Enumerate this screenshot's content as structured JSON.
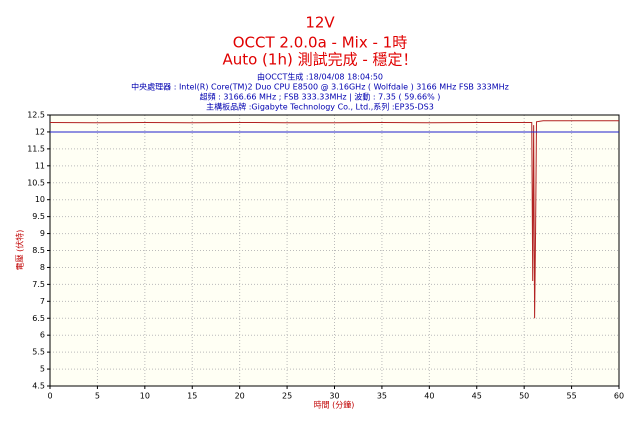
{
  "chart_data": {
    "type": "line",
    "title": "12V",
    "subtitle": "OCCT 2.0.0a - Mix - 1時",
    "status": "Auto (1h) 測試完成 - 穩定！",
    "info": [
      "由OCCT生成 :18/04/08 18:04:50",
      "中央處理器 : Intel(R) Core(TM)2 Duo CPU E8500 @ 3.16GHz ( Wolfdale ) 3166 MHz FSB 333MHz",
      "超頻 : 3166.66 MHz ; FSB 333.33MHz | 波動 : 7.35 ( 59.66% )",
      "主構板品牌 :Gigabyte Technology Co., Ltd.,系列 :EP35-DS3"
    ],
    "xlabel": "時間 (分鐘)",
    "ylabel": "電壓 (伏特)",
    "xlim": [
      0,
      60
    ],
    "xticks": [
      0,
      5,
      10,
      15,
      20,
      25,
      30,
      35,
      40,
      45,
      50,
      55,
      60
    ],
    "ylim": [
      4.5,
      12.5
    ],
    "yticks": [
      4.5,
      5,
      5.5,
      6,
      6.5,
      7,
      7.5,
      8,
      8.5,
      9,
      9.5,
      10,
      10.5,
      11,
      11.5,
      12,
      12.5
    ],
    "grid": true,
    "series": [
      {
        "color": "#b22222",
        "x": [
          0,
          5,
          10,
          15,
          20,
          25,
          30,
          35,
          40,
          45,
          50,
          50.8,
          50.9,
          51.0,
          51.1,
          51.2,
          51.3,
          52,
          55,
          60
        ],
        "values": [
          12.28,
          12.27,
          12.28,
          12.27,
          12.28,
          12.27,
          12.27,
          12.28,
          12.27,
          12.28,
          12.28,
          12.28,
          7.6,
          12.2,
          6.5,
          9.0,
          12.3,
          12.33,
          12.33,
          12.33
        ]
      },
      {
        "color": "#2222cc",
        "x": [
          0,
          60
        ],
        "values": [
          12,
          12
        ]
      }
    ]
  }
}
